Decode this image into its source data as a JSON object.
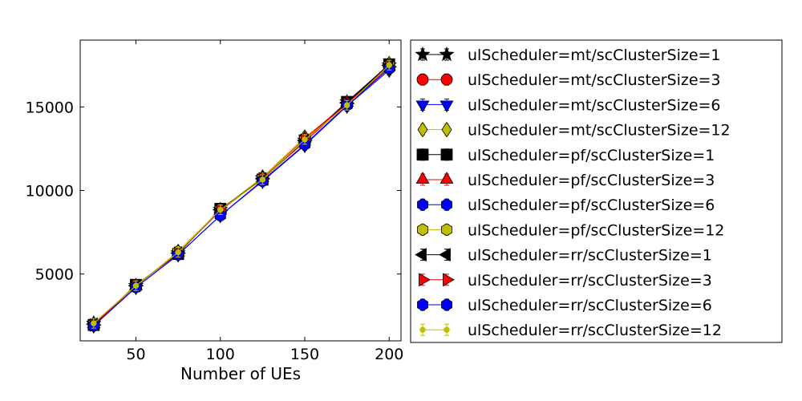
{
  "chart_data": {
    "type": "line",
    "xlabel": "Number of UEs",
    "ylabel": "",
    "xlim": [
      17,
      207
    ],
    "ylim": [
      1000,
      19000
    ],
    "x": [
      25,
      50,
      75,
      100,
      125,
      150,
      175,
      200
    ],
    "xticks": [
      50,
      100,
      150,
      200
    ],
    "yticks": [
      5000,
      10000,
      15000
    ],
    "legend_position": "outside-right",
    "grid": false,
    "series": [
      {
        "name": "ulScheduler=mt/scClusterSize=1",
        "color": "#000000",
        "marker": "star",
        "values": [
          2050,
          4300,
          6250,
          8850,
          10750,
          13000,
          15300,
          17500
        ]
      },
      {
        "name": "ulScheduler=mt/scClusterSize=3",
        "color": "#ff0000",
        "marker": "circle",
        "values": [
          1950,
          4300,
          6250,
          8800,
          10700,
          12900,
          15200,
          17300
        ]
      },
      {
        "name": "ulScheduler=mt/scClusterSize=6",
        "color": "#0000ff",
        "marker": "triangle-down",
        "values": [
          1900,
          4200,
          6150,
          8500,
          10550,
          12700,
          15050,
          17200
        ]
      },
      {
        "name": "ulScheduler=mt/scClusterSize=12",
        "color": "#bfbf00",
        "marker": "diamond",
        "values": [
          2050,
          4250,
          6350,
          8850,
          10800,
          13200,
          15100,
          17600
        ]
      },
      {
        "name": "ulScheduler=pf/scClusterSize=1",
        "color": "#000000",
        "marker": "square",
        "values": [
          1950,
          4350,
          6200,
          8900,
          10650,
          13000,
          15300,
          17550
        ]
      },
      {
        "name": "ulScheduler=pf/scClusterSize=3",
        "color": "#ff0000",
        "marker": "triangle-up",
        "values": [
          2000,
          4300,
          6300,
          8800,
          10750,
          13100,
          15250,
          17400
        ]
      },
      {
        "name": "ulScheduler=pf/scClusterSize=6",
        "color": "#0000ff",
        "marker": "hexagon",
        "values": [
          1900,
          4200,
          6150,
          8500,
          10600,
          12750,
          15100,
          17300
        ]
      },
      {
        "name": "ulScheduler=pf/scClusterSize=12",
        "color": "#bfbf00",
        "marker": "hexagon",
        "values": [
          2000,
          4250,
          6350,
          8850,
          10750,
          13050,
          15100,
          17500
        ]
      },
      {
        "name": "ulScheduler=rr/scClusterSize=1",
        "color": "#000000",
        "marker": "triangle-left",
        "values": [
          2000,
          4300,
          6250,
          8850,
          10700,
          13000,
          15250,
          17500
        ]
      },
      {
        "name": "ulScheduler=rr/scClusterSize=3",
        "color": "#ff0000",
        "marker": "triangle-right",
        "values": [
          1950,
          4300,
          6250,
          8800,
          10700,
          13000,
          15200,
          17400
        ]
      },
      {
        "name": "ulScheduler=rr/scClusterSize=6",
        "color": "#0000ff",
        "marker": "hexagon",
        "values": [
          1900,
          4200,
          6150,
          8500,
          10550,
          12750,
          15100,
          17300
        ]
      },
      {
        "name": "ulScheduler=rr/scClusterSize=12",
        "color": "#bfbf00",
        "marker": "point",
        "values": [
          2050,
          4300,
          6300,
          8850,
          10650,
          13050,
          15100,
          17500
        ]
      }
    ]
  }
}
